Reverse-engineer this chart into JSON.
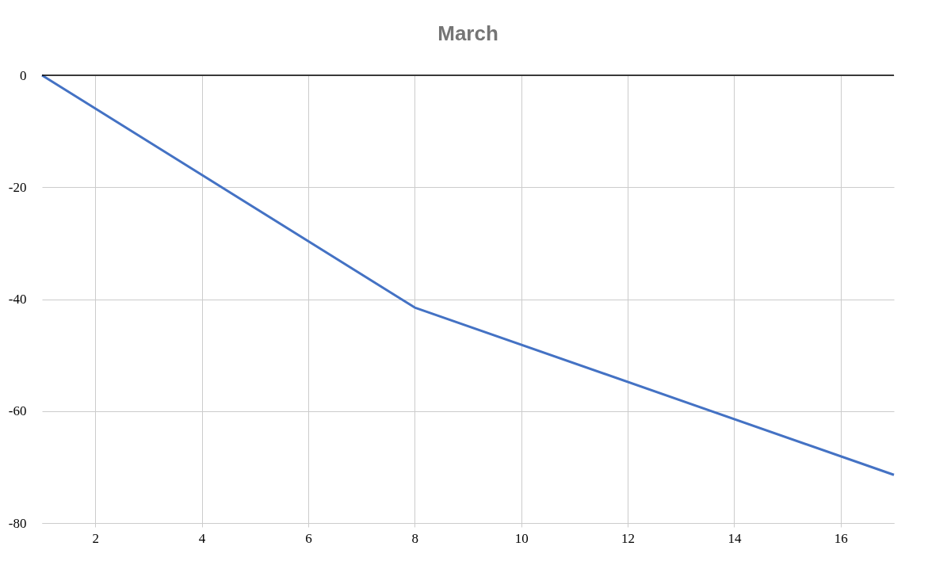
{
  "chart_data": {
    "type": "line",
    "title": "March",
    "x": [
      1,
      8,
      17
    ],
    "series": [
      {
        "color": "#4472c4",
        "values": [
          0,
          -41.5,
          -71.4
        ]
      }
    ],
    "xlim": [
      1,
      17
    ],
    "xticks": [
      2,
      4,
      6,
      8,
      10,
      12,
      14,
      16
    ],
    "ylim": [
      -80,
      0
    ],
    "yticks": [
      -80,
      -60,
      -40,
      -20,
      0
    ],
    "grid": true,
    "marker": "none",
    "line_style": "solid",
    "ref_lines": [
      {
        "axis": "y",
        "value": 0,
        "color": "#000000"
      }
    ]
  }
}
